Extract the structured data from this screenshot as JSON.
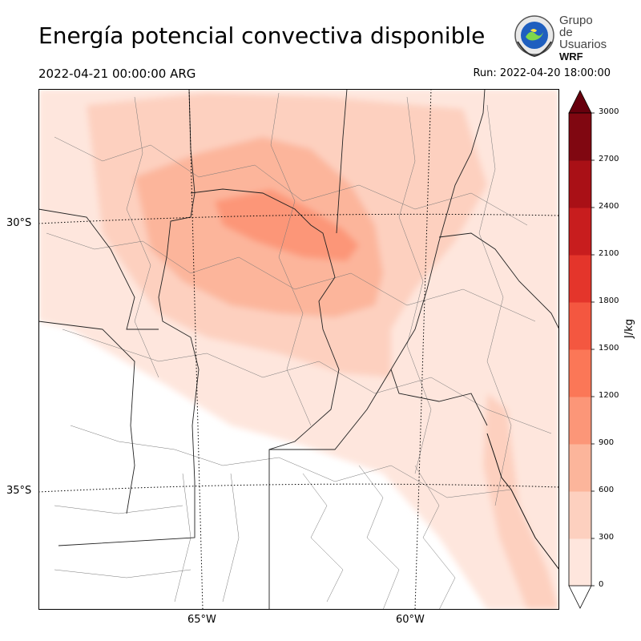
{
  "header": {
    "title": "Energía potencial convectiva disponible",
    "valid_time": "2022-04-21 00:00:00 ARG",
    "run": "Run: 2022-04-20 18:00:00"
  },
  "logo": {
    "line1": "Grupo de",
    "line2": "Usuarios",
    "line3": "WRF"
  },
  "map": {
    "lat_labels": [
      "30°S",
      "35°S"
    ],
    "lon_labels": [
      "65°W",
      "60°W"
    ]
  },
  "colorbar": {
    "unit": "J/kg",
    "ticks": [
      "0",
      "300",
      "600",
      "900",
      "1200",
      "1500",
      "1800",
      "2100",
      "2400",
      "2700",
      "3000"
    ],
    "colors": [
      "#fee6dd",
      "#fdd0bf",
      "#fcb59b",
      "#fc9678",
      "#fb7757",
      "#f45740",
      "#e4352b",
      "#c81d1e",
      "#a91016",
      "#800711"
    ],
    "over_color": "#67000d",
    "under_color": "#ffffff"
  }
}
